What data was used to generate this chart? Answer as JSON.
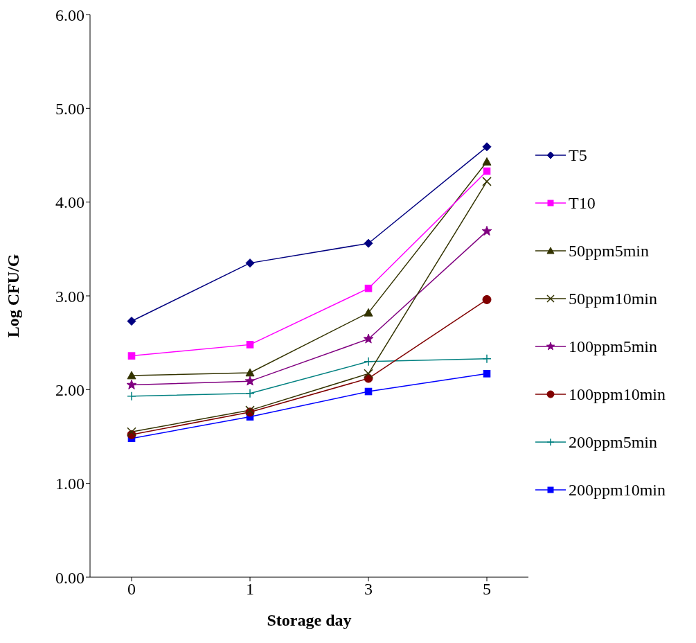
{
  "chart_data": {
    "type": "line",
    "xlabel": "Storage day",
    "ylabel": "Log CFU/G",
    "categories": [
      "0",
      "1",
      "3",
      "5"
    ],
    "ylim": [
      0,
      6
    ],
    "yticks": [
      {
        "value": 0,
        "label": "0.00"
      },
      {
        "value": 1,
        "label": "1.00"
      },
      {
        "value": 2,
        "label": "2.00"
      },
      {
        "value": 3,
        "label": "3.00"
      },
      {
        "value": 4,
        "label": "4.00"
      },
      {
        "value": 5,
        "label": "5.00"
      },
      {
        "value": 6,
        "label": "6.00"
      }
    ],
    "grid": false,
    "legend": "right",
    "line_style": "solid",
    "series": [
      {
        "name": "T5",
        "color": "#000080",
        "marker": "diamond",
        "values": [
          2.73,
          3.35,
          3.56,
          4.59
        ]
      },
      {
        "name": "T10",
        "color": "#ff00ff",
        "marker": "square",
        "values": [
          2.36,
          2.48,
          3.08,
          4.33
        ]
      },
      {
        "name": "50ppm5min",
        "color": "#333300",
        "marker": "triangle",
        "values": [
          2.15,
          2.18,
          2.82,
          4.43
        ]
      },
      {
        "name": "50ppm10min",
        "color": "#333300",
        "marker": "cross",
        "values": [
          1.55,
          1.78,
          2.17,
          4.22
        ]
      },
      {
        "name": "100ppm5min",
        "color": "#800080",
        "marker": "star",
        "values": [
          2.05,
          2.09,
          2.54,
          3.69
        ]
      },
      {
        "name": "100ppm10min",
        "color": "#800000",
        "marker": "circle",
        "values": [
          1.52,
          1.76,
          2.12,
          2.96
        ]
      },
      {
        "name": "200ppm5min",
        "color": "#008080",
        "marker": "plus",
        "values": [
          1.93,
          1.96,
          2.3,
          2.33
        ]
      },
      {
        "name": "200ppm10min",
        "color": "#0000ff",
        "marker": "square",
        "values": [
          1.48,
          1.71,
          1.98,
          2.17
        ]
      }
    ]
  }
}
